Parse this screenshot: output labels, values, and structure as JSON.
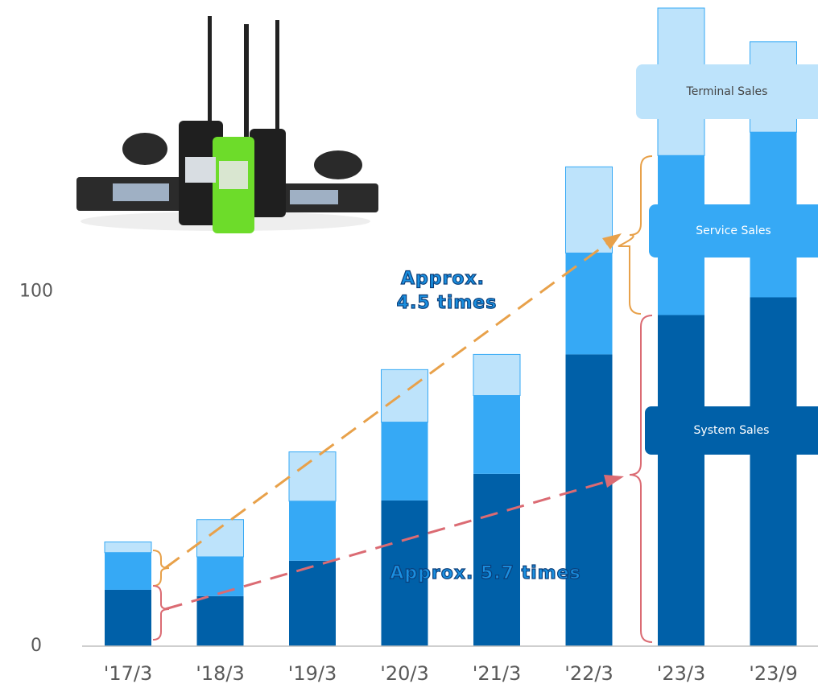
{
  "chart_data": {
    "type": "stacked_bar",
    "categories": [
      "'17/3",
      "'18/3",
      "'19/3",
      "'20/3",
      "'21/3",
      "'22/3",
      "'23/3",
      "'23/9"
    ],
    "series": [
      {
        "name": "System Sales",
        "color": "#0060a8",
        "values": [
          15.9,
          14.1,
          24.1,
          41.1,
          48.6,
          82.3,
          93.4,
          98.4
        ]
      },
      {
        "name": "Service Sales",
        "color": "#36a9f5",
        "values": [
          10.5,
          11.1,
          16.8,
          22.1,
          22.1,
          28.6,
          45.0,
          46.6
        ]
      },
      {
        "name": "Terminal Sales",
        "color": "#bde3fb",
        "values": [
          3.0,
          10.5,
          13.9,
          14.8,
          11.6,
          24.3,
          41.6,
          25.5
        ]
      }
    ],
    "ylim": [
      0,
      180
    ],
    "yticks": [
      0,
      100
    ],
    "annotations": [
      "Approx.",
      "4.5 times",
      "Approx. 5.7 times"
    ]
  }
}
